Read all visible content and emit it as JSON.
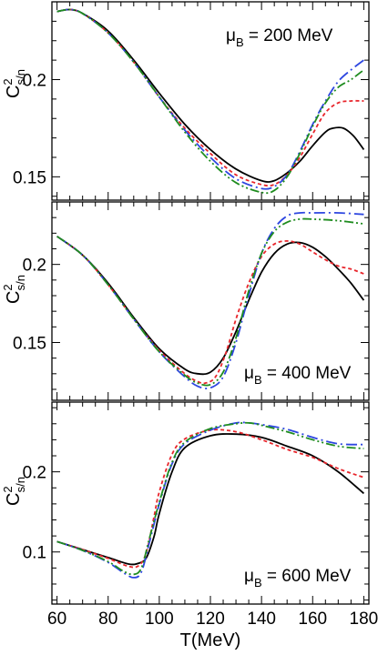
{
  "chart_data": [
    {
      "type": "line",
      "ylabel_main": "C",
      "ylabel_sup": "2",
      "ylabel_sub": "s/n",
      "annotation": {
        "symbol": "μ",
        "sub": "B",
        "text": " = 200 MeV",
        "position": "top-right"
      },
      "xlim": [
        58,
        182
      ],
      "ylim": [
        0.138,
        0.24
      ],
      "yticks": [
        {
          "v": 0.15,
          "label": "0.15"
        },
        {
          "v": 0.2,
          "label": "0.2"
        }
      ],
      "yminor": 0.01,
      "series": [
        {
          "color": "#000000",
          "dash": "solid",
          "x": [
            60,
            65,
            70,
            80,
            90,
            100,
            110,
            120,
            130,
            140,
            145,
            150,
            155,
            160,
            165,
            168,
            172,
            176,
            180
          ],
          "y": [
            0.235,
            0.236,
            0.234,
            0.225,
            0.21,
            0.193,
            0.177,
            0.164,
            0.154,
            0.148,
            0.148,
            0.152,
            0.158,
            0.166,
            0.173,
            0.175,
            0.175,
            0.171,
            0.164
          ]
        },
        {
          "color": "#e8252b",
          "dash": "4,3",
          "x": [
            60,
            65,
            70,
            80,
            90,
            100,
            110,
            120,
            130,
            140,
            145,
            150,
            155,
            160,
            165,
            170,
            175,
            180
          ],
          "y": [
            0.235,
            0.236,
            0.234,
            0.224,
            0.209,
            0.191,
            0.175,
            0.162,
            0.151,
            0.146,
            0.146,
            0.151,
            0.16,
            0.172,
            0.183,
            0.188,
            0.189,
            0.189
          ]
        },
        {
          "color": "#2d46e0",
          "dash": "12,4,2,4",
          "x": [
            60,
            65,
            70,
            80,
            90,
            100,
            110,
            120,
            130,
            140,
            145,
            150,
            155,
            160,
            165,
            170,
            175,
            180
          ],
          "y": [
            0.235,
            0.236,
            0.234,
            0.224,
            0.209,
            0.191,
            0.174,
            0.16,
            0.149,
            0.144,
            0.145,
            0.151,
            0.163,
            0.177,
            0.189,
            0.199,
            0.205,
            0.21
          ]
        },
        {
          "color": "#1f8c1f",
          "dash": "10,3,2,3,2,3",
          "x": [
            60,
            65,
            70,
            80,
            90,
            100,
            110,
            120,
            130,
            140,
            145,
            150,
            155,
            160,
            165,
            170,
            175,
            180
          ],
          "y": [
            0.235,
            0.236,
            0.234,
            0.224,
            0.209,
            0.191,
            0.173,
            0.158,
            0.147,
            0.142,
            0.143,
            0.15,
            0.162,
            0.176,
            0.188,
            0.196,
            0.2,
            0.205
          ]
        }
      ]
    },
    {
      "type": "line",
      "ylabel_main": "C",
      "ylabel_sup": "2",
      "ylabel_sub": "s/n",
      "annotation": {
        "symbol": "μ",
        "sub": "B",
        "text": " = 400 MeV",
        "position": "bottom-right"
      },
      "xlim": [
        58,
        182
      ],
      "ylim": [
        0.113,
        0.24
      ],
      "yticks": [
        {
          "v": 0.15,
          "label": "0.15"
        },
        {
          "v": 0.2,
          "label": "0.2"
        }
      ],
      "yminor": 0.01,
      "series": [
        {
          "color": "#000000",
          "dash": "solid",
          "x": [
            60,
            70,
            80,
            90,
            100,
            110,
            115,
            120,
            125,
            130,
            135,
            140,
            145,
            150,
            155,
            160,
            165,
            170,
            175,
            180
          ],
          "y": [
            0.218,
            0.206,
            0.188,
            0.166,
            0.146,
            0.133,
            0.13,
            0.131,
            0.14,
            0.157,
            0.177,
            0.195,
            0.207,
            0.213,
            0.214,
            0.211,
            0.205,
            0.197,
            0.188,
            0.177
          ]
        },
        {
          "color": "#e8252b",
          "dash": "4,3",
          "x": [
            60,
            70,
            80,
            90,
            100,
            110,
            115,
            118,
            122,
            126,
            130,
            135,
            140,
            145,
            150,
            155,
            160,
            165,
            170,
            175,
            180
          ],
          "y": [
            0.218,
            0.206,
            0.187,
            0.165,
            0.145,
            0.13,
            0.125,
            0.124,
            0.128,
            0.143,
            0.165,
            0.188,
            0.205,
            0.213,
            0.215,
            0.213,
            0.208,
            0.203,
            0.199,
            0.197,
            0.194
          ]
        },
        {
          "color": "#2d46e0",
          "dash": "12,4,2,4",
          "x": [
            60,
            70,
            80,
            90,
            100,
            110,
            115,
            120,
            125,
            130,
            135,
            140,
            145,
            150,
            155,
            160,
            170,
            180
          ],
          "y": [
            0.218,
            0.206,
            0.187,
            0.165,
            0.144,
            0.128,
            0.122,
            0.121,
            0.128,
            0.15,
            0.18,
            0.207,
            0.223,
            0.231,
            0.233,
            0.233,
            0.233,
            0.232
          ]
        },
        {
          "color": "#1f8c1f",
          "dash": "10,3,2,3,2,3",
          "x": [
            60,
            70,
            80,
            90,
            100,
            110,
            115,
            120,
            125,
            130,
            135,
            140,
            145,
            150,
            155,
            160,
            170,
            180
          ],
          "y": [
            0.218,
            0.206,
            0.187,
            0.165,
            0.144,
            0.129,
            0.124,
            0.123,
            0.131,
            0.153,
            0.183,
            0.207,
            0.221,
            0.227,
            0.229,
            0.229,
            0.228,
            0.226
          ]
        }
      ]
    },
    {
      "type": "line",
      "ylabel_main": "C",
      "ylabel_sup": "2",
      "ylabel_sub": "s/n",
      "annotation": {
        "symbol": "μ",
        "sub": "B",
        "text": " = 600 MeV",
        "position": "bottom-right"
      },
      "xlabel": "T(MeV)",
      "xlim": [
        58,
        182
      ],
      "ylim": [
        0.035,
        0.287
      ],
      "xticks": [
        60,
        80,
        100,
        120,
        140,
        160,
        180
      ],
      "xminor": 5,
      "yticks": [
        {
          "v": 0.1,
          "label": "0.1"
        },
        {
          "v": 0.2,
          "label": "0.2"
        }
      ],
      "yminor": 0.02,
      "series": [
        {
          "color": "#000000",
          "dash": "solid",
          "x": [
            60,
            70,
            80,
            88,
            92,
            95,
            98,
            100,
            105,
            110,
            120,
            130,
            140,
            150,
            160,
            170,
            180
          ],
          "y": [
            0.113,
            0.103,
            0.093,
            0.085,
            0.086,
            0.093,
            0.12,
            0.148,
            0.2,
            0.23,
            0.245,
            0.247,
            0.243,
            0.232,
            0.22,
            0.2,
            0.173
          ]
        },
        {
          "color": "#e8252b",
          "dash": "4,3",
          "x": [
            60,
            70,
            80,
            88,
            92,
            95,
            98,
            100,
            105,
            110,
            120,
            130,
            140,
            150,
            160,
            170,
            180
          ],
          "y": [
            0.113,
            0.103,
            0.092,
            0.082,
            0.083,
            0.1,
            0.145,
            0.175,
            0.222,
            0.241,
            0.252,
            0.25,
            0.24,
            0.228,
            0.218,
            0.204,
            0.193
          ]
        },
        {
          "color": "#2d46e0",
          "dash": "12,4,2,4",
          "x": [
            60,
            70,
            80,
            86,
            90,
            93,
            96,
            100,
            105,
            110,
            120,
            130,
            135,
            140,
            150,
            160,
            170,
            180
          ],
          "y": [
            0.113,
            0.102,
            0.087,
            0.074,
            0.068,
            0.075,
            0.11,
            0.16,
            0.21,
            0.235,
            0.252,
            0.261,
            0.261,
            0.259,
            0.253,
            0.243,
            0.235,
            0.234
          ]
        },
        {
          "color": "#1f8c1f",
          "dash": "10,3,2,3,2,3",
          "x": [
            60,
            70,
            80,
            86,
            90,
            93,
            96,
            100,
            105,
            110,
            120,
            130,
            135,
            140,
            150,
            160,
            170,
            180
          ],
          "y": [
            0.113,
            0.102,
            0.088,
            0.076,
            0.072,
            0.08,
            0.115,
            0.162,
            0.212,
            0.237,
            0.254,
            0.26,
            0.261,
            0.258,
            0.25,
            0.24,
            0.232,
            0.229
          ]
        }
      ]
    }
  ]
}
